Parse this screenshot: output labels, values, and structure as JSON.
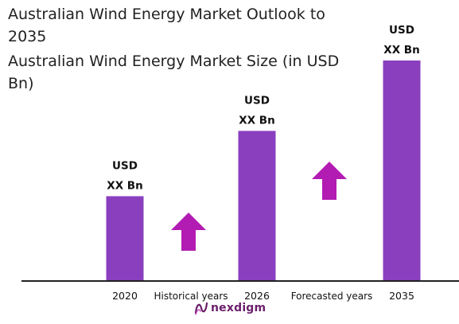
{
  "title": "Australian Wind Energy Market Outlook to 2035",
  "subtitle": "Australian Wind Energy Market Size (in USD Bn)",
  "brand": {
    "name": "nexdigm",
    "color": "#6b1f6b"
  },
  "colors": {
    "bar": "#8a3fbf",
    "arrow": "#b31cb3",
    "axis": "#222222"
  },
  "chart_data": {
    "type": "bar",
    "categories": [
      "2020",
      "2026",
      "2035"
    ],
    "values": [
      1.0,
      1.77,
      2.6
    ],
    "value_unit": "relative (actual values masked)",
    "data_labels": [
      [
        "USD",
        "XX Bn"
      ],
      [
        "USD",
        "XX Bn"
      ],
      [
        "USD",
        "XX Bn"
      ]
    ],
    "period_labels": [
      "Historical years",
      "Forecasted years"
    ],
    "trend_arrows": [
      "up",
      "up"
    ],
    "title": "Australian Wind Energy Market Size (in USD Bn)",
    "xlabel": "",
    "ylabel": "",
    "ylim": [
      0,
      2.6
    ],
    "grid": false,
    "legend": "none"
  }
}
